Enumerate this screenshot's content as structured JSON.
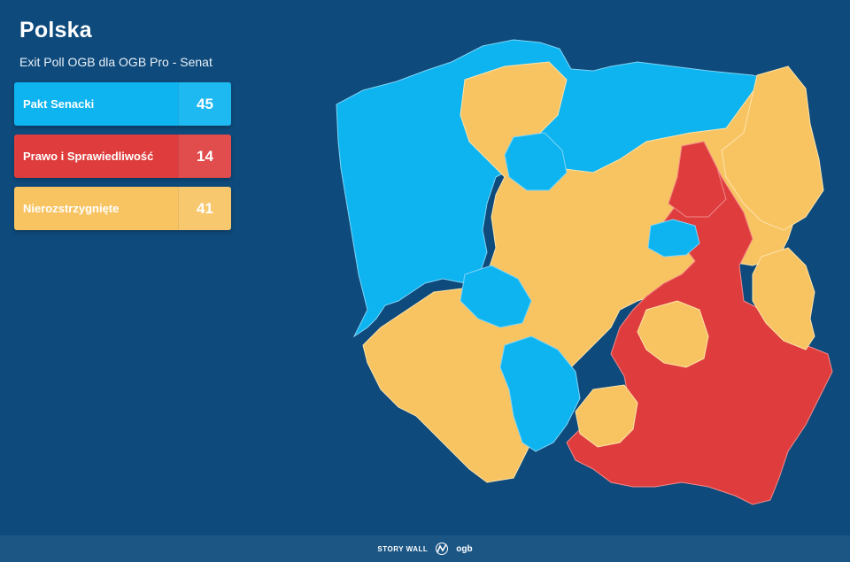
{
  "header": {
    "title": "Polska",
    "subtitle": "Exit Poll OGB dla OGB Pro - Senat"
  },
  "legend": [
    {
      "label": "Pakt Senacki",
      "count": "45",
      "color": "#0db4f0"
    },
    {
      "label": "Prawo i Sprawiedliwość",
      "count": "14",
      "color": "#df3d3d"
    },
    {
      "label": "Nierozstrzygnięte",
      "count": "41",
      "color": "#f8c462"
    }
  ],
  "map": {
    "region": "Polska",
    "party_colors": {
      "pakt": "#0db4f0",
      "pis": "#df3d3d",
      "undecided": "#f8c462"
    }
  },
  "footer": {
    "brand": "STORY WALL",
    "logo_text": "ogb",
    "logo_icon": "ogb-logo-icon"
  }
}
